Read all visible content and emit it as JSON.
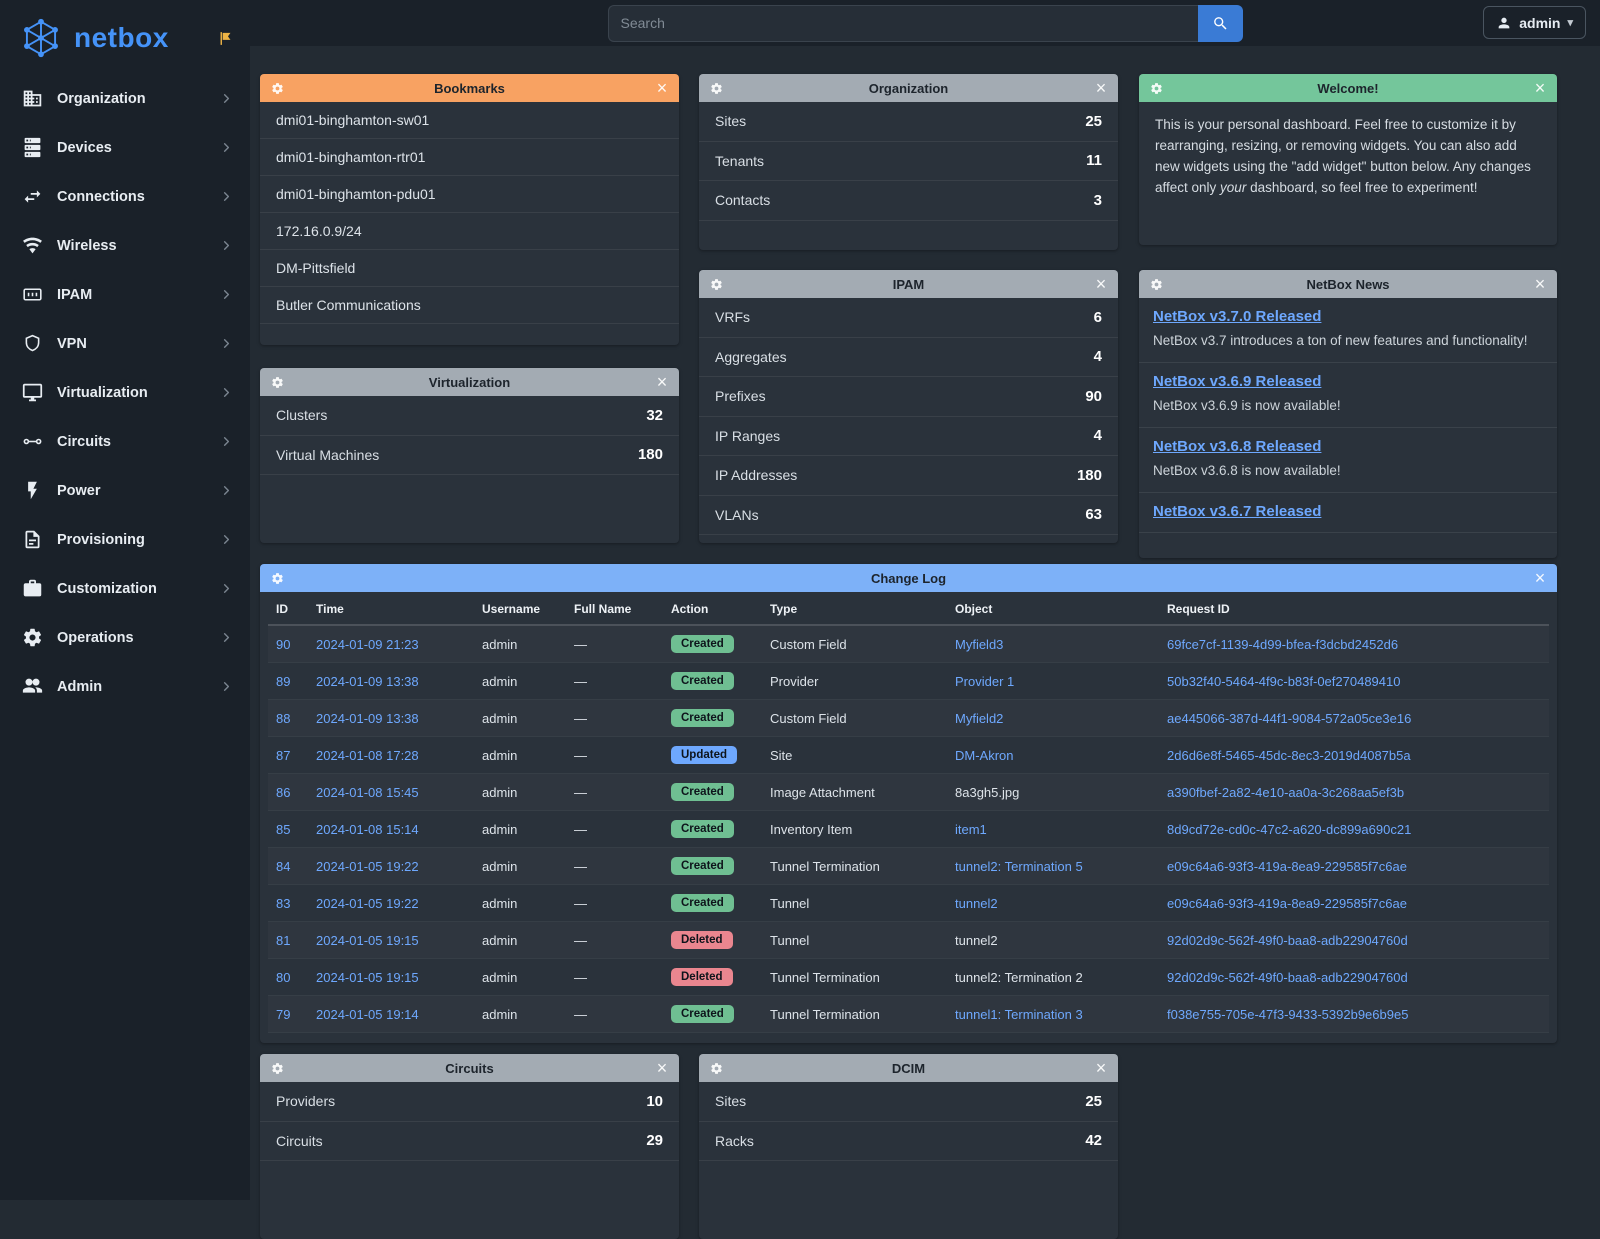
{
  "topbar": {
    "search_placeholder": "Search",
    "user_label": "admin"
  },
  "sidebar": {
    "brand": "netbox",
    "items": [
      {
        "label": "Organization",
        "icon": "building-icon",
        "symbol": "i-building"
      },
      {
        "label": "Devices",
        "icon": "server-icon",
        "symbol": "i-server"
      },
      {
        "label": "Connections",
        "icon": "cable-swap-icon",
        "symbol": "i-swap"
      },
      {
        "label": "Wireless",
        "icon": "wifi-icon",
        "symbol": "i-wifi"
      },
      {
        "label": "IPAM",
        "icon": "counter-icon",
        "symbol": "i-counter"
      },
      {
        "label": "VPN",
        "icon": "shield-icon",
        "symbol": "i-shield"
      },
      {
        "label": "Virtualization",
        "icon": "monitor-icon",
        "symbol": "i-monitor"
      },
      {
        "label": "Circuits",
        "icon": "circuit-nodes-icon",
        "symbol": "i-circuit"
      },
      {
        "label": "Power",
        "icon": "lightning-bolt-icon",
        "symbol": "i-bolt"
      },
      {
        "label": "Provisioning",
        "icon": "document-icon",
        "symbol": "i-document"
      },
      {
        "label": "Customization",
        "icon": "briefcase-icon",
        "symbol": "i-briefcase"
      },
      {
        "label": "Operations",
        "icon": "gears-icon",
        "symbol": "i-gear"
      },
      {
        "label": "Admin",
        "icon": "users-icon",
        "symbol": "i-users"
      }
    ]
  },
  "widgets": {
    "bookmarks": {
      "title": "Bookmarks",
      "items": [
        "dmi01-binghamton-sw01",
        "dmi01-binghamton-rtr01",
        "dmi01-binghamton-pdu01",
        "172.16.0.9/24",
        "DM-Pittsfield",
        "Butler Communications"
      ]
    },
    "organization": {
      "title": "Organization",
      "rows": [
        {
          "label": "Sites",
          "value": "25"
        },
        {
          "label": "Tenants",
          "value": "11"
        },
        {
          "label": "Contacts",
          "value": "3"
        }
      ]
    },
    "welcome": {
      "title": "Welcome!",
      "text_start": "This is your personal dashboard. Feel free to customize it by rearranging, resizing, or removing widgets. You can also add new widgets using the \"add widget\" button below. Any changes affect only ",
      "text_italic": "your",
      "text_end": " dashboard, so feel free to experiment!"
    },
    "virtualization": {
      "title": "Virtualization",
      "rows": [
        {
          "label": "Clusters",
          "value": "32"
        },
        {
          "label": "Virtual Machines",
          "value": "180"
        }
      ]
    },
    "ipam": {
      "title": "IPAM",
      "rows": [
        {
          "label": "VRFs",
          "value": "6"
        },
        {
          "label": "Aggregates",
          "value": "4"
        },
        {
          "label": "Prefixes",
          "value": "90"
        },
        {
          "label": "IP Ranges",
          "value": "4"
        },
        {
          "label": "IP Addresses",
          "value": "180"
        },
        {
          "label": "VLANs",
          "value": "63"
        }
      ]
    },
    "news": {
      "title": "NetBox News",
      "items": [
        {
          "title": "NetBox v3.7.0 Released",
          "description": "NetBox v3.7 introduces a ton of new features and functionality!"
        },
        {
          "title": "NetBox v3.6.9 Released",
          "description": "NetBox v3.6.9 is now available!"
        },
        {
          "title": "NetBox v3.6.8 Released",
          "description": "NetBox v3.6.8 is now available!"
        },
        {
          "title": "NetBox v3.6.7 Released",
          "description": ""
        }
      ]
    },
    "changelog": {
      "title": "Change Log",
      "columns": [
        "ID",
        "Time",
        "Username",
        "Full Name",
        "Action",
        "Type",
        "Object",
        "Request ID"
      ],
      "rows": [
        {
          "id": "90",
          "time": "2024-01-09 21:23",
          "username": "admin",
          "full_name": "—",
          "action": "Created",
          "type": "Custom Field",
          "object": "Myfield3",
          "object_is_link": true,
          "request_id": "69fce7cf-1139-4d99-bfea-f3dcbd2452d6"
        },
        {
          "id": "89",
          "time": "2024-01-09 13:38",
          "username": "admin",
          "full_name": "—",
          "action": "Created",
          "type": "Provider",
          "object": "Provider 1",
          "object_is_link": true,
          "request_id": "50b32f40-5464-4f9c-b83f-0ef270489410"
        },
        {
          "id": "88",
          "time": "2024-01-09 13:38",
          "username": "admin",
          "full_name": "—",
          "action": "Created",
          "type": "Custom Field",
          "object": "Myfield2",
          "object_is_link": true,
          "request_id": "ae445066-387d-44f1-9084-572a05ce3e16"
        },
        {
          "id": "87",
          "time": "2024-01-08 17:28",
          "username": "admin",
          "full_name": "—",
          "action": "Updated",
          "type": "Site",
          "object": "DM-Akron",
          "object_is_link": true,
          "request_id": "2d6d6e8f-5465-45dc-8ec3-2019d4087b5a"
        },
        {
          "id": "86",
          "time": "2024-01-08 15:45",
          "username": "admin",
          "full_name": "—",
          "action": "Created",
          "type": "Image Attachment",
          "object": "8a3gh5.jpg",
          "object_is_link": false,
          "request_id": "a390fbef-2a82-4e10-aa0a-3c268aa5ef3b"
        },
        {
          "id": "85",
          "time": "2024-01-08 15:14",
          "username": "admin",
          "full_name": "—",
          "action": "Created",
          "type": "Inventory Item",
          "object": "item1",
          "object_is_link": true,
          "request_id": "8d9cd72e-cd0c-47c2-a620-dc899a690c21"
        },
        {
          "id": "84",
          "time": "2024-01-05 19:22",
          "username": "admin",
          "full_name": "—",
          "action": "Created",
          "type": "Tunnel Termination",
          "object": "tunnel2: Termination 5",
          "object_is_link": true,
          "request_id": "e09c64a6-93f3-419a-8ea9-229585f7c6ae"
        },
        {
          "id": "83",
          "time": "2024-01-05 19:22",
          "username": "admin",
          "full_name": "—",
          "action": "Created",
          "type": "Tunnel",
          "object": "tunnel2",
          "object_is_link": true,
          "request_id": "e09c64a6-93f3-419a-8ea9-229585f7c6ae"
        },
        {
          "id": "81",
          "time": "2024-01-05 19:15",
          "username": "admin",
          "full_name": "—",
          "action": "Deleted",
          "type": "Tunnel",
          "object": "tunnel2",
          "object_is_link": false,
          "request_id": "92d02d9c-562f-49f0-baa8-adb22904760d"
        },
        {
          "id": "80",
          "time": "2024-01-05 19:15",
          "username": "admin",
          "full_name": "—",
          "action": "Deleted",
          "type": "Tunnel Termination",
          "object": "tunnel2: Termination 2",
          "object_is_link": false,
          "request_id": "92d02d9c-562f-49f0-baa8-adb22904760d"
        },
        {
          "id": "79",
          "time": "2024-01-05 19:14",
          "username": "admin",
          "full_name": "—",
          "action": "Created",
          "type": "Tunnel Termination",
          "object": "tunnel1: Termination 3",
          "object_is_link": true,
          "request_id": "f038e755-705e-47f3-9433-5392b9e6b9e5"
        }
      ]
    },
    "circuits": {
      "title": "Circuits",
      "rows": [
        {
          "label": "Providers",
          "value": "10"
        },
        {
          "label": "Circuits",
          "value": "29"
        }
      ]
    },
    "dcim": {
      "title": "DCIM",
      "rows": [
        {
          "label": "Sites",
          "value": "25"
        },
        {
          "label": "Racks",
          "value": "42"
        }
      ]
    }
  },
  "colors": {
    "header_orange": "#f8a262",
    "header_gray": "#a3abb3",
    "header_green": "#74c69b",
    "header_blue": "#7db1f8",
    "badge_created": "#6fbf92",
    "badge_updated": "#6ea8fe",
    "badge_deleted": "#ea868f",
    "link_blue": "#6ea8fe",
    "brand_blue": "#4593f8",
    "search_button_blue": "#3a7bd5"
  }
}
